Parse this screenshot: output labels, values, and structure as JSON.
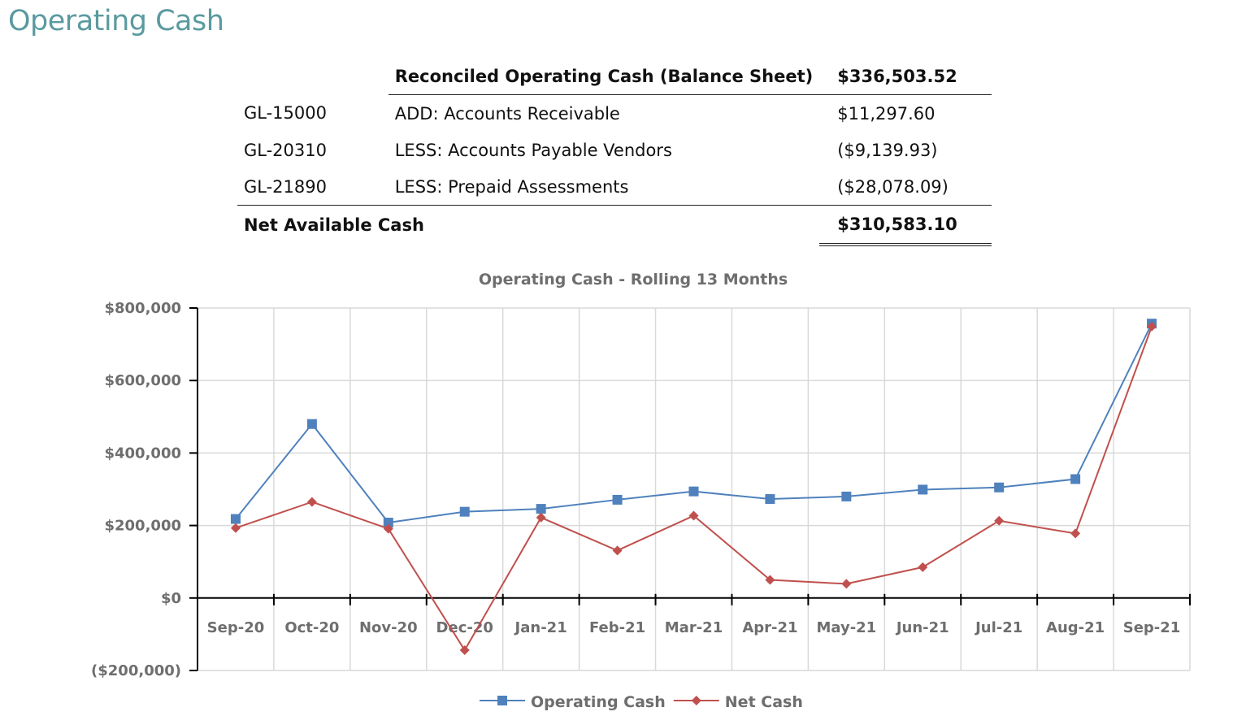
{
  "page": {
    "title": "Operating Cash"
  },
  "reconciliation": {
    "header": {
      "label": "Reconciled Operating Cash (Balance Sheet)",
      "amount": "$336,503.52"
    },
    "rows": [
      {
        "gl": "GL-15000",
        "description": "ADD: Accounts Receivable",
        "amount": "$11,297.60"
      },
      {
        "gl": "GL-20310",
        "description": "LESS: Accounts Payable Vendors",
        "amount": "($9,139.93)"
      },
      {
        "gl": "GL-21890",
        "description": "LESS: Prepaid Assessments",
        "amount": "($28,078.09)"
      }
    ],
    "total": {
      "label": "Net Available Cash",
      "amount": "$310,583.10"
    }
  },
  "chart_data": {
    "type": "line",
    "title": "Operating Cash - Rolling 13 Months",
    "xlabel": "",
    "ylabel": "",
    "categories": [
      "Sep-20",
      "Oct-20",
      "Nov-20",
      "Dec-20",
      "Jan-21",
      "Feb-21",
      "Mar-21",
      "Apr-21",
      "May-21",
      "Jun-21",
      "Jul-21",
      "Aug-21",
      "Sep-21"
    ],
    "ylim": [
      -200000,
      800000
    ],
    "yticks": [
      -200000,
      0,
      200000,
      400000,
      600000,
      800000
    ],
    "ytick_labels": [
      "($200,000)",
      "$0",
      "$200,000",
      "$400,000",
      "$600,000",
      "$800,000"
    ],
    "grid": true,
    "legend_position": "bottom-center",
    "series": [
      {
        "name": "Operating Cash",
        "color": "#4f81bd",
        "marker": "square",
        "values": [
          218000,
          480000,
          208000,
          238000,
          246000,
          271000,
          294000,
          273000,
          280000,
          299000,
          305000,
          328000,
          757000
        ]
      },
      {
        "name": "Net Cash",
        "color": "#c0504d",
        "marker": "diamond",
        "values": [
          193000,
          265000,
          191000,
          144000,
          222000,
          131000,
          227000,
          50000,
          39000,
          85000,
          213000,
          178000,
          749000
        ],
        "signs": [
          1,
          1,
          1,
          -1,
          1,
          1,
          1,
          1,
          1,
          1,
          1,
          1,
          1
        ]
      }
    ]
  }
}
